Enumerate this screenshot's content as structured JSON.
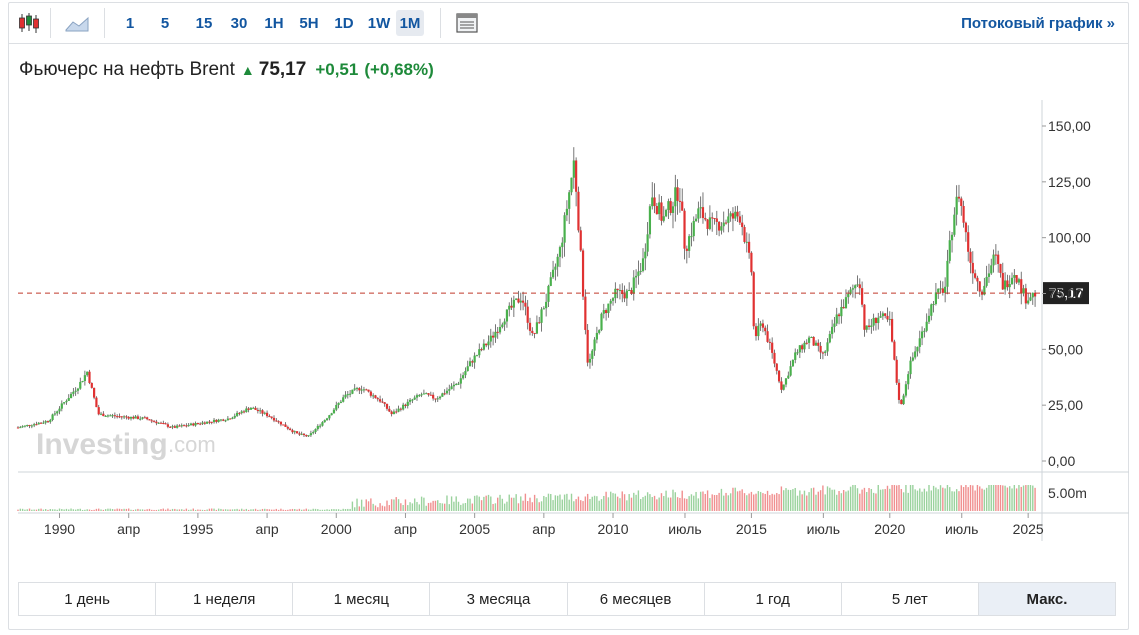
{
  "toolbar": {
    "candles_icon": "candlestick-icon",
    "area_icon": "area-chart-icon",
    "intervals": [
      "1",
      "5",
      "15",
      "30",
      "1H",
      "5H",
      "1D",
      "1W",
      "1M"
    ],
    "active_interval": "1M",
    "settings_icon": "chart-settings-icon",
    "stream_link": "Потоковый график »"
  },
  "quote": {
    "name": "Фьючерс на нефть Brent",
    "price": "75,17",
    "change": "+0,51",
    "change_pct": "(+0,68%)"
  },
  "watermark": {
    "main": "Investing",
    "suffix": ".com"
  },
  "colors": {
    "up": "#1e8a3a",
    "down": "#e03131",
    "link": "#1256a0",
    "price_line": "#c0392b"
  },
  "price_tag": "75,17",
  "periods": [
    "1 день",
    "1 неделя",
    "1 месяц",
    "3 месяца",
    "6 месяцев",
    "1 год",
    "5 лет",
    "Макс."
  ],
  "active_period": "Макс.",
  "chart_data": {
    "type": "candlestick",
    "title": "",
    "y_axis": {
      "ticks": [
        "150,00",
        "125,00",
        "100,00",
        "75,00",
        "50,00",
        "25,00",
        "0,00"
      ],
      "values": [
        150,
        125,
        100,
        75,
        50,
        25,
        0
      ],
      "range": [
        0,
        150
      ]
    },
    "volume_axis": {
      "ticks": [
        "5.00m"
      ]
    },
    "x_axis": {
      "labels": [
        "1990",
        "апр",
        "1995",
        "апр",
        "2000",
        "апр",
        "2005",
        "апр",
        "2010",
        "июль",
        "2015",
        "июль",
        "2020",
        "июль",
        "2025"
      ],
      "positions": [
        1989.9,
        1992.4,
        1994.9,
        1997.4,
        1999.9,
        2002.4,
        2004.9,
        2007.4,
        2009.9,
        2012.5,
        2014.9,
        2017.5,
        2019.9,
        2022.5,
        2024.9
      ],
      "range": [
        1988.4,
        2025.4
      ]
    },
    "price_path": [
      [
        1988.4,
        15
      ],
      [
        1989.5,
        18
      ],
      [
        1990.6,
        34
      ],
      [
        1990.9,
        40
      ],
      [
        1991.3,
        21
      ],
      [
        1992.0,
        20
      ],
      [
        1993.0,
        19
      ],
      [
        1994.0,
        15
      ],
      [
        1995.0,
        17
      ],
      [
        1996.0,
        19
      ],
      [
        1996.8,
        24
      ],
      [
        1997.5,
        20
      ],
      [
        1998.5,
        12
      ],
      [
        1998.9,
        11
      ],
      [
        1999.6,
        20
      ],
      [
        2000.2,
        29
      ],
      [
        2000.8,
        33
      ],
      [
        2001.5,
        27
      ],
      [
        2001.9,
        21
      ],
      [
        2002.6,
        27
      ],
      [
        2003.0,
        30
      ],
      [
        2003.5,
        28
      ],
      [
        2004.3,
        35
      ],
      [
        2004.8,
        45
      ],
      [
        2005.5,
        55
      ],
      [
        2006.0,
        65
      ],
      [
        2006.6,
        74
      ],
      [
        2007.0,
        55
      ],
      [
        2007.5,
        73
      ],
      [
        2008.0,
        95
      ],
      [
        2008.5,
        135
      ],
      [
        2008.9,
        60
      ],
      [
        2009.0,
        42
      ],
      [
        2009.5,
        65
      ],
      [
        2010.0,
        75
      ],
      [
        2010.5,
        75
      ],
      [
        2011.0,
        90
      ],
      [
        2011.3,
        120
      ],
      [
        2011.7,
        108
      ],
      [
        2012.3,
        122
      ],
      [
        2012.5,
        95
      ],
      [
        2013.0,
        112
      ],
      [
        2013.5,
        105
      ],
      [
        2014.0,
        108
      ],
      [
        2014.5,
        110
      ],
      [
        2014.9,
        85
      ],
      [
        2015.0,
        55
      ],
      [
        2015.3,
        62
      ],
      [
        2015.6,
        50
      ],
      [
        2016.0,
        32
      ],
      [
        2016.5,
        48
      ],
      [
        2017.0,
        55
      ],
      [
        2017.5,
        47
      ],
      [
        2018.0,
        65
      ],
      [
        2018.8,
        82
      ],
      [
        2019.0,
        58
      ],
      [
        2019.5,
        65
      ],
      [
        2019.9,
        62
      ],
      [
        2020.2,
        30
      ],
      [
        2020.3,
        24
      ],
      [
        2020.6,
        42
      ],
      [
        2021.0,
        55
      ],
      [
        2021.5,
        73
      ],
      [
        2021.9,
        78
      ],
      [
        2022.2,
        110
      ],
      [
        2022.4,
        120
      ],
      [
        2022.8,
        90
      ],
      [
        2023.2,
        76
      ],
      [
        2023.7,
        92
      ],
      [
        2024.0,
        78
      ],
      [
        2024.4,
        85
      ],
      [
        2024.8,
        73
      ],
      [
        2025.2,
        75.17
      ]
    ],
    "last_price": 75.17
  }
}
